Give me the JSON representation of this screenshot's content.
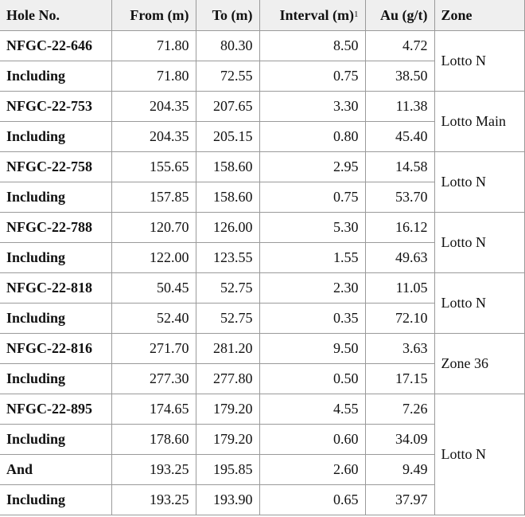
{
  "headers": {
    "hole": "Hole No.",
    "from": "From (m)",
    "to": "To (m)",
    "interval": "Interval (m)",
    "interval_sup": "1",
    "au": "Au (g/t)",
    "zone": "Zone"
  },
  "rows": [
    {
      "hole": "NFGC-22-646",
      "from": "71.80",
      "to": "80.30",
      "interval": "8.50",
      "au": "4.72",
      "zone": "Lotto N"
    },
    {
      "hole": "Including",
      "from": "71.80",
      "to": "72.55",
      "interval": "0.75",
      "au": "38.50"
    },
    {
      "hole": "NFGC-22-753",
      "from": "204.35",
      "to": "207.65",
      "interval": "3.30",
      "au": "11.38",
      "zone": "Lotto Main"
    },
    {
      "hole": "Including",
      "from": "204.35",
      "to": "205.15",
      "interval": "0.80",
      "au": "45.40"
    },
    {
      "hole": "NFGC-22-758",
      "from": "155.65",
      "to": "158.60",
      "interval": "2.95",
      "au": "14.58",
      "zone": "Lotto N"
    },
    {
      "hole": "Including",
      "from": "157.85",
      "to": "158.60",
      "interval": "0.75",
      "au": "53.70"
    },
    {
      "hole": "NFGC-22-788",
      "from": "120.70",
      "to": "126.00",
      "interval": "5.30",
      "au": "16.12",
      "zone": "Lotto N"
    },
    {
      "hole": "Including",
      "from": "122.00",
      "to": "123.55",
      "interval": "1.55",
      "au": "49.63"
    },
    {
      "hole": "NFGC-22-818",
      "from": "50.45",
      "to": "52.75",
      "interval": "2.30",
      "au": "11.05",
      "zone": "Lotto N"
    },
    {
      "hole": "Including",
      "from": "52.40",
      "to": "52.75",
      "interval": "0.35",
      "au": "72.10"
    },
    {
      "hole": "NFGC-22-816",
      "from": "271.70",
      "to": "281.20",
      "interval": "9.50",
      "au": "3.63",
      "zone": "Zone 36"
    },
    {
      "hole": "Including",
      "from": "277.30",
      "to": "277.80",
      "interval": "0.50",
      "au": "17.15"
    },
    {
      "hole": "NFGC-22-895",
      "from": "174.65",
      "to": "179.20",
      "interval": "4.55",
      "au": "7.26",
      "zone": "Lotto N"
    },
    {
      "hole": "Including",
      "from": "178.60",
      "to": "179.20",
      "interval": "0.60",
      "au": "34.09"
    },
    {
      "hole": "And",
      "from": "193.25",
      "to": "195.85",
      "interval": "2.60",
      "au": "9.49"
    },
    {
      "hole": "Including",
      "from": "193.25",
      "to": "193.90",
      "interval": "0.65",
      "au": "37.97"
    }
  ],
  "zone_spans": [
    2,
    0,
    2,
    0,
    2,
    0,
    2,
    0,
    2,
    0,
    2,
    0,
    4,
    0,
    0,
    0
  ]
}
